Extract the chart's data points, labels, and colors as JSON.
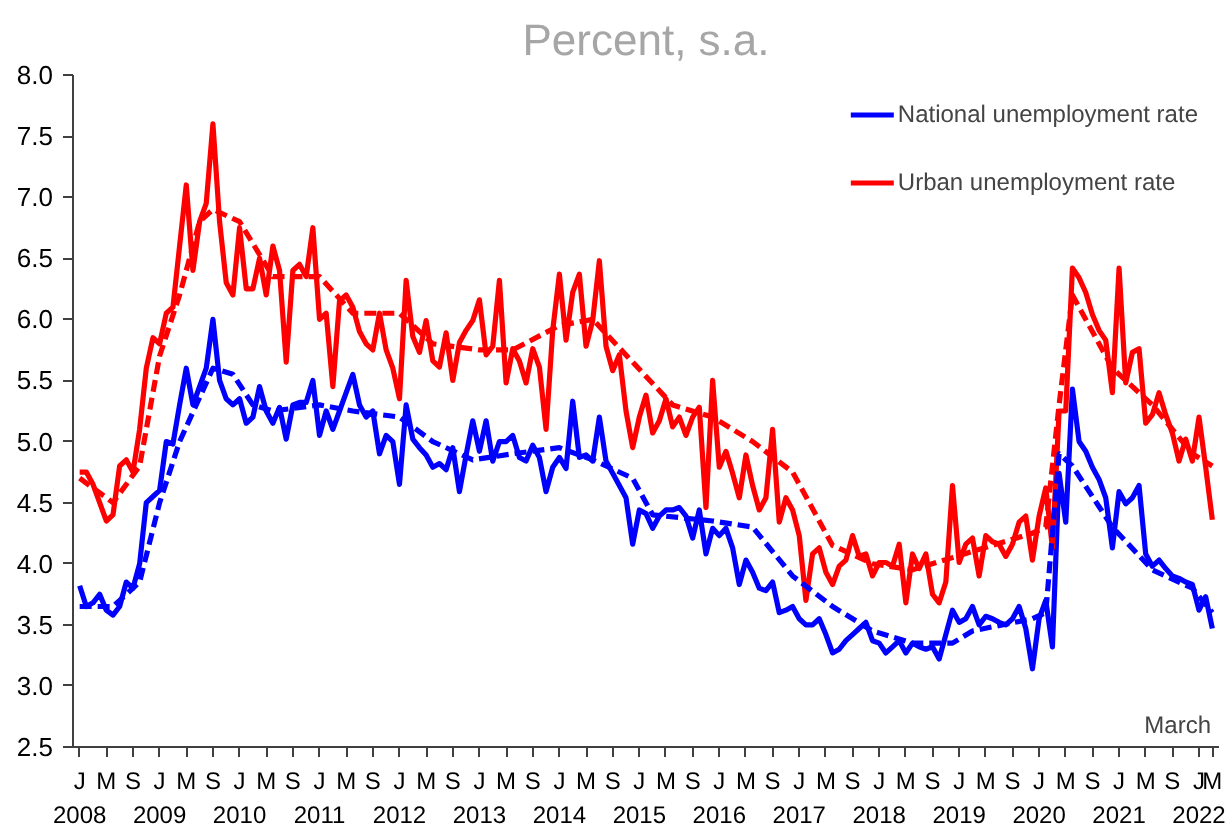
{
  "chart_data": {
    "type": "line",
    "title": "Percent, s.a.",
    "x": [
      "2008-01",
      "2008-02",
      "2008-03",
      "2008-04",
      "2008-05",
      "2008-06",
      "2008-07",
      "2008-08",
      "2008-09",
      "2008-10",
      "2008-11",
      "2008-12",
      "2009-01",
      "2009-02",
      "2009-03",
      "2009-04",
      "2009-05",
      "2009-06",
      "2009-07",
      "2009-08",
      "2009-09",
      "2009-10",
      "2009-11",
      "2009-12",
      "2010-01",
      "2010-02",
      "2010-03",
      "2010-04",
      "2010-05",
      "2010-06",
      "2010-07",
      "2010-08",
      "2010-09",
      "2010-10",
      "2010-11",
      "2010-12",
      "2011-01",
      "2011-02",
      "2011-03",
      "2011-04",
      "2011-05",
      "2011-06",
      "2011-07",
      "2011-08",
      "2011-09",
      "2011-10",
      "2011-11",
      "2011-12",
      "2012-01",
      "2012-02",
      "2012-03",
      "2012-04",
      "2012-05",
      "2012-06",
      "2012-07",
      "2012-08",
      "2012-09",
      "2012-10",
      "2012-11",
      "2012-12",
      "2013-01",
      "2013-02",
      "2013-03",
      "2013-04",
      "2013-05",
      "2013-06",
      "2013-07",
      "2013-08",
      "2013-09",
      "2013-10",
      "2013-11",
      "2013-12",
      "2014-01",
      "2014-02",
      "2014-03",
      "2014-04",
      "2014-05",
      "2014-06",
      "2014-07",
      "2014-08",
      "2014-09",
      "2014-10",
      "2014-11",
      "2014-12",
      "2015-01",
      "2015-02",
      "2015-03",
      "2015-04",
      "2015-05",
      "2015-06",
      "2015-07",
      "2015-08",
      "2015-09",
      "2015-10",
      "2015-11",
      "2015-12",
      "2016-01",
      "2016-02",
      "2016-03",
      "2016-04",
      "2016-05",
      "2016-06",
      "2016-07",
      "2016-08",
      "2016-09",
      "2016-10",
      "2016-11",
      "2016-12",
      "2017-01",
      "2017-02",
      "2017-03",
      "2017-04",
      "2017-05",
      "2017-06",
      "2017-07",
      "2017-08",
      "2017-09",
      "2017-10",
      "2017-11",
      "2017-12",
      "2018-01",
      "2018-02",
      "2018-03",
      "2018-04",
      "2018-05",
      "2018-06",
      "2018-07",
      "2018-08",
      "2018-09",
      "2018-10",
      "2018-11",
      "2018-12",
      "2019-01",
      "2019-02",
      "2019-03",
      "2019-04",
      "2019-05",
      "2019-06",
      "2019-07",
      "2019-08",
      "2019-09",
      "2019-10",
      "2019-11",
      "2019-12",
      "2020-01",
      "2020-02",
      "2020-03",
      "2020-04",
      "2020-05",
      "2020-06",
      "2020-07",
      "2020-08",
      "2020-09",
      "2020-10",
      "2020-11",
      "2020-12",
      "2021-01",
      "2021-02",
      "2021-03",
      "2021-04",
      "2021-05",
      "2021-06",
      "2021-07",
      "2021-08",
      "2021-09",
      "2021-10",
      "2021-11",
      "2021-12",
      "2022-01",
      "2022-02",
      "2022-03"
    ],
    "series": [
      {
        "name": "National unemployment rate",
        "color": "#0000ff",
        "line_style": "solid",
        "values": [
          3.82,
          3.65,
          3.68,
          3.75,
          3.62,
          3.58,
          3.65,
          3.85,
          3.8,
          4.0,
          4.5,
          4.55,
          4.6,
          5.0,
          4.98,
          5.3,
          5.6,
          5.3,
          5.45,
          5.6,
          6.0,
          5.5,
          5.35,
          5.3,
          5.35,
          5.15,
          5.2,
          5.45,
          5.25,
          5.15,
          5.28,
          5.02,
          5.3,
          5.32,
          5.32,
          5.5,
          5.05,
          5.25,
          5.1,
          5.25,
          5.4,
          5.55,
          5.3,
          5.2,
          5.25,
          4.9,
          5.05,
          5.0,
          4.65,
          5.3,
          5.02,
          4.95,
          4.89,
          4.79,
          4.82,
          4.77,
          4.95,
          4.59,
          4.89,
          5.17,
          4.92,
          5.17,
          4.84,
          5.0,
          5.0,
          5.05,
          4.87,
          4.84,
          4.97,
          4.87,
          4.59,
          4.79,
          4.87,
          4.78,
          5.33,
          4.87,
          4.89,
          4.84,
          5.2,
          4.84,
          4.74,
          4.64,
          4.54,
          4.16,
          4.44,
          4.41,
          4.29,
          4.39,
          4.44,
          4.44,
          4.46,
          4.39,
          4.21,
          4.44,
          4.08,
          4.29,
          4.23,
          4.29,
          4.13,
          3.83,
          4.03,
          3.93,
          3.8,
          3.78,
          3.85,
          3.6,
          3.62,
          3.65,
          3.55,
          3.5,
          3.5,
          3.55,
          3.42,
          3.27,
          3.3,
          3.37,
          3.42,
          3.47,
          3.52,
          3.37,
          3.35,
          3.27,
          3.32,
          3.37,
          3.27,
          3.35,
          3.32,
          3.3,
          3.32,
          3.22,
          3.42,
          3.62,
          3.52,
          3.55,
          3.65,
          3.5,
          3.57,
          3.55,
          3.52,
          3.5,
          3.55,
          3.65,
          3.47,
          3.14,
          3.55,
          3.7,
          3.32,
          4.74,
          4.34,
          5.43,
          5.0,
          4.92,
          4.79,
          4.69,
          4.54,
          4.13,
          4.59,
          4.49,
          4.54,
          4.64,
          4.08,
          3.98,
          4.03,
          3.96,
          3.9,
          3.88,
          3.85,
          3.83,
          3.62,
          3.73,
          3.47
        ]
      },
      {
        "name": "Urban unemployment rate",
        "color": "#ff0000",
        "line_style": "solid",
        "values": [
          4.75,
          4.75,
          4.65,
          4.5,
          4.35,
          4.4,
          4.8,
          4.85,
          4.75,
          5.1,
          5.6,
          5.85,
          5.8,
          6.05,
          6.1,
          6.6,
          7.1,
          6.4,
          6.8,
          6.95,
          7.6,
          6.8,
          6.3,
          6.2,
          6.75,
          6.25,
          6.25,
          6.5,
          6.2,
          6.6,
          6.4,
          5.65,
          6.4,
          6.45,
          6.35,
          6.75,
          6.0,
          6.05,
          5.45,
          6.15,
          6.2,
          6.1,
          5.9,
          5.8,
          5.75,
          6.05,
          5.75,
          5.6,
          5.35,
          6.32,
          5.86,
          5.73,
          5.99,
          5.66,
          5.61,
          5.89,
          5.5,
          5.81,
          5.91,
          5.99,
          6.16,
          5.71,
          5.78,
          6.32,
          5.48,
          5.76,
          5.66,
          5.48,
          5.76,
          5.61,
          5.1,
          5.91,
          6.37,
          5.83,
          6.22,
          6.37,
          5.78,
          5.99,
          6.48,
          5.78,
          5.58,
          5.71,
          5.25,
          4.95,
          5.2,
          5.38,
          5.07,
          5.17,
          5.35,
          5.12,
          5.2,
          5.05,
          5.2,
          5.28,
          4.46,
          5.5,
          4.79,
          4.92,
          4.74,
          4.54,
          4.89,
          4.64,
          4.44,
          4.54,
          5.1,
          4.34,
          4.54,
          4.44,
          4.23,
          3.7,
          4.08,
          4.13,
          3.93,
          3.83,
          3.98,
          4.03,
          4.23,
          4.06,
          4.08,
          3.9,
          4.01,
          4.01,
          3.98,
          4.16,
          3.68,
          4.08,
          3.96,
          4.08,
          3.75,
          3.68,
          3.85,
          4.64,
          4.01,
          4.16,
          4.21,
          3.9,
          4.23,
          4.18,
          4.16,
          4.06,
          4.16,
          4.34,
          4.39,
          4.03,
          4.39,
          4.62,
          4.13,
          5.25,
          5.25,
          6.42,
          6.34,
          6.22,
          6.04,
          5.91,
          5.83,
          5.4,
          6.42,
          5.48,
          5.73,
          5.76,
          5.15,
          5.22,
          5.4,
          5.22,
          5.07,
          4.84,
          5.02,
          4.84,
          5.2,
          4.79,
          4.36
        ]
      },
      {
        "color": "#0000ff",
        "line_style": "dashed",
        "x": [
          "2008-01",
          "2008-06",
          "2008-10",
          "2009-01",
          "2009-04",
          "2009-09",
          "2009-12",
          "2010-03",
          "2010-06",
          "2011-01",
          "2011-06",
          "2012-01",
          "2012-06",
          "2012-12",
          "2013-06",
          "2014-01",
          "2014-06",
          "2014-12",
          "2015-03",
          "2015-12",
          "2016-06",
          "2016-12",
          "2017-06",
          "2017-12",
          "2018-06",
          "2018-12",
          "2019-03",
          "2019-12",
          "2020-02",
          "2020-04",
          "2020-06",
          "2020-12",
          "2021-06",
          "2021-12",
          "2022-03"
        ],
        "values": [
          3.65,
          3.65,
          3.85,
          4.5,
          5.0,
          5.6,
          5.55,
          5.3,
          5.25,
          5.3,
          5.25,
          5.2,
          5.0,
          4.85,
          4.9,
          4.95,
          4.85,
          4.7,
          4.4,
          4.35,
          4.3,
          3.9,
          3.65,
          3.45,
          3.35,
          3.35,
          3.45,
          3.55,
          3.6,
          4.9,
          4.8,
          4.3,
          3.95,
          3.8,
          3.6
        ]
      },
      {
        "color": "#ff0000",
        "line_style": "dashed",
        "x": [
          "2008-01",
          "2008-06",
          "2008-10",
          "2009-01",
          "2009-04",
          "2009-07",
          "2009-09",
          "2010-01",
          "2010-06",
          "2011-01",
          "2011-06",
          "2012-01",
          "2012-06",
          "2013-01",
          "2013-06",
          "2014-01",
          "2014-06",
          "2014-12",
          "2015-06",
          "2015-12",
          "2016-06",
          "2016-12",
          "2017-06",
          "2017-12",
          "2018-06",
          "2018-12",
          "2019-06",
          "2019-12",
          "2020-02",
          "2020-04",
          "2020-06",
          "2020-12",
          "2021-06",
          "2021-12",
          "2022-03"
        ],
        "values": [
          4.7,
          4.5,
          4.8,
          5.7,
          6.2,
          6.8,
          6.9,
          6.8,
          6.35,
          6.35,
          6.05,
          6.05,
          5.8,
          5.75,
          5.75,
          5.95,
          6.0,
          5.65,
          5.3,
          5.2,
          5.0,
          4.75,
          4.15,
          4.0,
          3.95,
          4.05,
          4.15,
          4.25,
          4.3,
          5.3,
          6.2,
          5.6,
          5.3,
          4.9,
          4.8
        ]
      }
    ],
    "xlim": [
      "2007-12",
      "2022-04"
    ],
    "xticks": [
      {
        "value": "2008-01",
        "label": "J\n2008"
      },
      {
        "value": "2008-05",
        "label": "M"
      },
      {
        "value": "2008-09",
        "label": "S"
      },
      {
        "value": "2009-01",
        "label": "J\n2009"
      },
      {
        "value": "2009-05",
        "label": "M"
      },
      {
        "value": "2009-09",
        "label": "S"
      },
      {
        "value": "2010-01",
        "label": "J\n2010"
      },
      {
        "value": "2010-05",
        "label": "M"
      },
      {
        "value": "2010-09",
        "label": "S"
      },
      {
        "value": "2011-01",
        "label": "J\n2011"
      },
      {
        "value": "2011-05",
        "label": "M"
      },
      {
        "value": "2011-09",
        "label": "S"
      },
      {
        "value": "2012-01",
        "label": "J\n2012"
      },
      {
        "value": "2012-05",
        "label": "M"
      },
      {
        "value": "2012-09",
        "label": "S"
      },
      {
        "value": "2013-01",
        "label": "J\n2013"
      },
      {
        "value": "2013-05",
        "label": "M"
      },
      {
        "value": "2013-09",
        "label": "S"
      },
      {
        "value": "2014-01",
        "label": "J\n2014"
      },
      {
        "value": "2014-05",
        "label": "M"
      },
      {
        "value": "2014-09",
        "label": "S"
      },
      {
        "value": "2015-01",
        "label": "J\n2015"
      },
      {
        "value": "2015-05",
        "label": "M"
      },
      {
        "value": "2015-09",
        "label": "S"
      },
      {
        "value": "2016-01",
        "label": "J\n2016"
      },
      {
        "value": "2016-05",
        "label": "M"
      },
      {
        "value": "2016-09",
        "label": "S"
      },
      {
        "value": "2017-01",
        "label": "J\n2017"
      },
      {
        "value": "2017-05",
        "label": "M"
      },
      {
        "value": "2017-09",
        "label": "S"
      },
      {
        "value": "2018-01",
        "label": "J\n2018"
      },
      {
        "value": "2018-05",
        "label": "M"
      },
      {
        "value": "2018-09",
        "label": "S"
      },
      {
        "value": "2019-01",
        "label": "J\n2019"
      },
      {
        "value": "2019-05",
        "label": "M"
      },
      {
        "value": "2019-09",
        "label": "S"
      },
      {
        "value": "2020-01",
        "label": "J\n2020"
      },
      {
        "value": "2020-05",
        "label": "M"
      },
      {
        "value": "2020-09",
        "label": "S"
      },
      {
        "value": "2021-01",
        "label": "J\n2021"
      },
      {
        "value": "2021-05",
        "label": "M"
      },
      {
        "value": "2021-09",
        "label": "S"
      },
      {
        "value": "2022-01",
        "label": "J\n2022"
      },
      {
        "value": "2022-03",
        "label": "M"
      }
    ],
    "ylim": [
      2.5,
      8.0
    ],
    "yticks": [
      {
        "value": 2.5,
        "label": "2.5"
      },
      {
        "value": 3,
        "label": "3.0"
      },
      {
        "value": 3.5,
        "label": "3.5"
      },
      {
        "value": 4,
        "label": "4.0"
      },
      {
        "value": 4.5,
        "label": "4.5"
      },
      {
        "value": 5,
        "label": "5.0"
      },
      {
        "value": 5.5,
        "label": "5.5"
      },
      {
        "value": 6,
        "label": "6.0"
      },
      {
        "value": 6.5,
        "label": "6.5"
      },
      {
        "value": 7,
        "label": "7.0"
      },
      {
        "value": 7.5,
        "label": "7.5"
      },
      {
        "value": 8,
        "label": "8.0"
      }
    ],
    "annotations": [
      "March"
    ],
    "legend": "top right",
    "grid": false
  }
}
